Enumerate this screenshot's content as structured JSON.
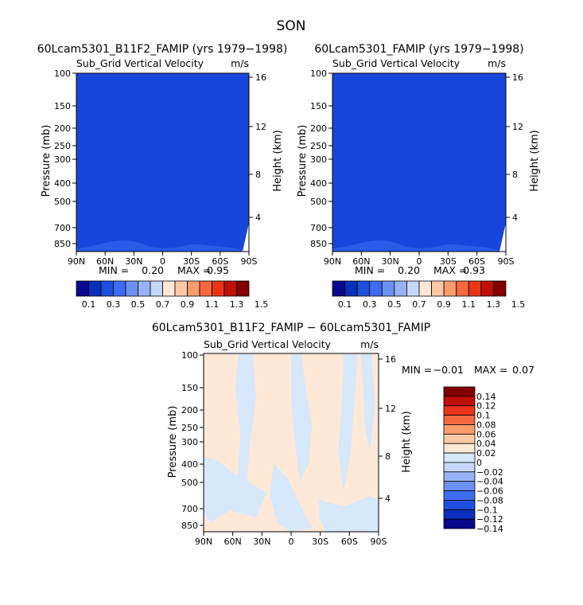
{
  "page": {
    "title": "SON"
  },
  "colors": {
    "cb_main": [
      "#08088c",
      "#0a2fbb",
      "#1e4fe0",
      "#3d6cf0",
      "#6b91f3",
      "#97b3f6",
      "#c5d8fb",
      "#fde8d7",
      "#fcc8a6",
      "#f99c6d",
      "#f6683f",
      "#e93419",
      "#c01008",
      "#850000"
    ],
    "cb_diff": [
      "#08088c",
      "#0a2fbb",
      "#1e4fe0",
      "#3d6cf0",
      "#6b91f3",
      "#97b3f6",
      "#c5d8fb",
      "#d6e8fa",
      "#fde8d7",
      "#fcc8a6",
      "#f99c6d",
      "#f6683f",
      "#e93419",
      "#c01008",
      "#850000"
    ],
    "field_main": "#1746dc",
    "field_main_low": "#2a5be8",
    "field_diff_base": "#fde8d7",
    "field_diff_neg": "#d6e8fa"
  },
  "chart_data": [
    {
      "type": "heatmap",
      "title": "60Lcam5301_B11F2_FAMIP (yrs 1979−1998)",
      "subtitle": "Sub_Grid Vertical Velocity",
      "units": "m/s",
      "ylabel": "Pressure (mb)",
      "y2label": "Height (km)",
      "xticks": [
        "90N",
        "60N",
        "30N",
        "0",
        "30S",
        "60S",
        "90S"
      ],
      "yticks": [
        "100",
        "150",
        "200",
        "250",
        "300",
        "400",
        "500",
        "700",
        "850"
      ],
      "y2ticks": [
        "16",
        "12",
        "8",
        "4"
      ],
      "min_label": "MIN =",
      "min_value": "0.20",
      "max_label": "MAX =",
      "max_value": "0.95",
      "colorbar": {
        "labels": [
          "0.1",
          "0.3",
          "0.5",
          "0.7",
          "0.9",
          "1.1",
          "1.3",
          "1.5"
        ]
      }
    },
    {
      "type": "heatmap",
      "title": "60Lcam5301_FAMIP (yrs 1979−1998)",
      "subtitle": "Sub_Grid Vertical Velocity",
      "units": "m/s",
      "ylabel": "Pressure (mb)",
      "y2label": "Height (km)",
      "xticks": [
        "90N",
        "60N",
        "30N",
        "0",
        "30S",
        "60S",
        "90S"
      ],
      "yticks": [
        "100",
        "150",
        "200",
        "250",
        "300",
        "400",
        "500",
        "700",
        "850"
      ],
      "y2ticks": [
        "16",
        "12",
        "8",
        "4"
      ],
      "min_label": "MIN =",
      "min_value": "0.20",
      "max_label": "MAX =",
      "max_value": "0.93",
      "colorbar": {
        "labels": [
          "0.1",
          "0.3",
          "0.5",
          "0.7",
          "0.9",
          "1.1",
          "1.3",
          "1.5"
        ]
      }
    },
    {
      "type": "heatmap",
      "title": "60Lcam5301_B11F2_FAMIP − 60Lcam5301_FAMIP",
      "subtitle": "Sub_Grid Vertical Velocity",
      "units": "m/s",
      "ylabel": "Pressure (mb)",
      "y2label": "Height (km)",
      "xticks": [
        "90N",
        "60N",
        "30N",
        "0",
        "30S",
        "60S",
        "90S"
      ],
      "yticks": [
        "100",
        "150",
        "200",
        "250",
        "300",
        "400",
        "500",
        "700",
        "850"
      ],
      "y2ticks": [
        "16",
        "12",
        "8",
        "4"
      ],
      "min_label": "MIN =",
      "min_value": "−0.01",
      "max_label": "MAX =",
      "max_value": "0.07",
      "colorbar": {
        "labels": [
          "0.14",
          "0.12",
          "0.1",
          "0.08",
          "0.06",
          "0.04",
          "0.02",
          "0",
          "−0.02",
          "−0.04",
          "−0.06",
          "−0.08",
          "−0.1",
          "−0.12",
          "−0.14"
        ]
      }
    }
  ]
}
